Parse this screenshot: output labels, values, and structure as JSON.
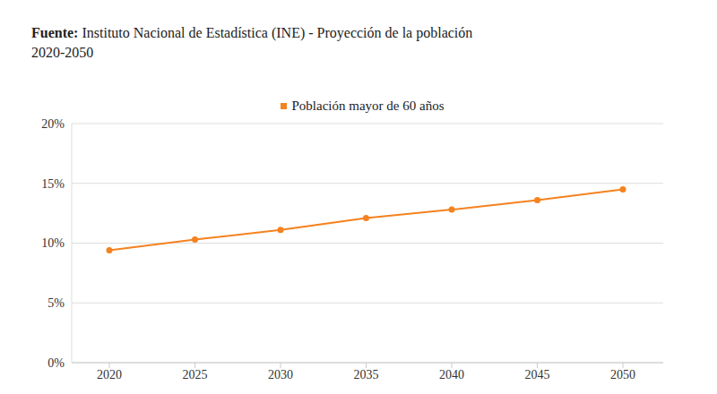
{
  "chart_data": {
    "type": "line",
    "title": "Fuente: Instituto Nacional de Estadística (INE) - Proyección de la población",
    "subtitle": "2020-2050",
    "categories": [
      "2020",
      "2025",
      "2030",
      "2035",
      "2040",
      "2045",
      "2050"
    ],
    "series": [
      {
        "name": "Población mayor de 60 años",
        "color": "#f5821f",
        "marker": "circle",
        "values": [
          9.4,
          10.3,
          11.1,
          12.1,
          12.8,
          13.6,
          14.5
        ]
      }
    ],
    "ylim": [
      0,
      20
    ],
    "yticks": [
      {
        "value": 0,
        "label": "0%"
      },
      {
        "value": 5,
        "label": "5%"
      },
      {
        "value": 10,
        "label": "10%"
      },
      {
        "value": 15,
        "label": "15%"
      },
      {
        "value": 20,
        "label": "20%"
      }
    ],
    "grid": true,
    "legend": "top"
  }
}
